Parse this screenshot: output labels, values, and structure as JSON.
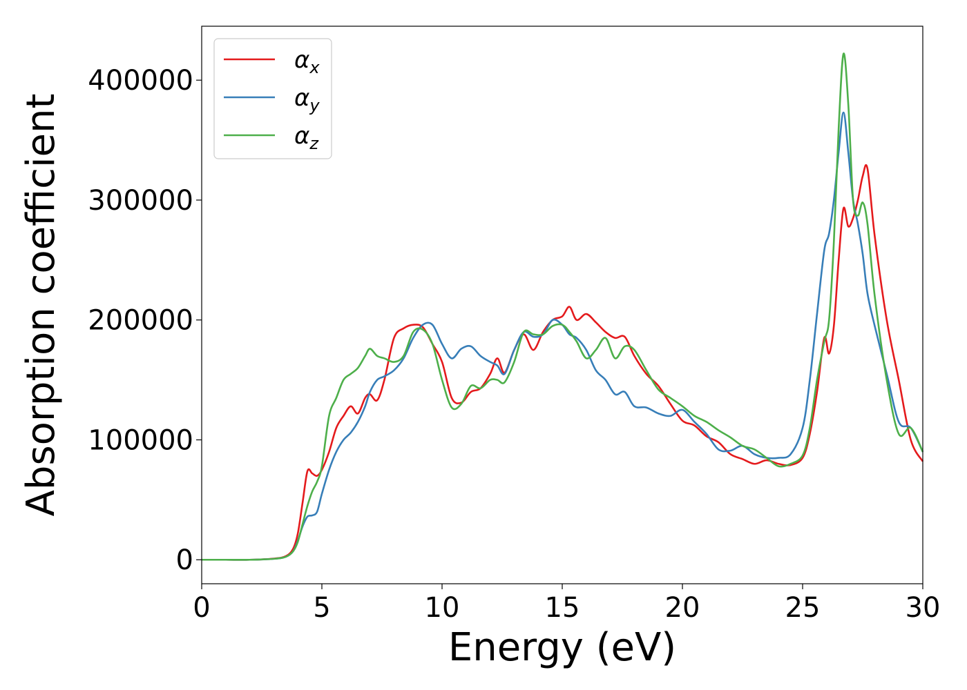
{
  "chart_data": {
    "type": "line",
    "title": "",
    "xlabel": "Energy (eV)",
    "ylabel": "Absorption coefficient",
    "xlim": [
      0,
      30
    ],
    "ylim": [
      -20000,
      445000
    ],
    "xticks": [
      0,
      5,
      10,
      15,
      20,
      25,
      30
    ],
    "xtick_labels": [
      "0",
      "5",
      "10",
      "15",
      "20",
      "25",
      "30"
    ],
    "yticks": [
      0,
      100000,
      200000,
      300000,
      400000
    ],
    "ytick_labels": [
      "0",
      "100000",
      "200000",
      "300000",
      "400000"
    ],
    "grid": false,
    "legend": "top-left",
    "series": [
      {
        "name": "α",
        "subscript": "x",
        "color": "#e41a1c",
        "x": [
          0,
          1,
          2,
          3,
          3.5,
          3.8,
          4.0,
          4.2,
          4.4,
          4.6,
          4.8,
          5.0,
          5.3,
          5.6,
          5.9,
          6.2,
          6.5,
          6.8,
          7.0,
          7.3,
          7.6,
          8.0,
          8.4,
          8.8,
          9.2,
          9.6,
          10.0,
          10.4,
          10.8,
          11.2,
          11.6,
          12.0,
          12.3,
          12.6,
          13.0,
          13.4,
          13.8,
          14.2,
          14.6,
          15.0,
          15.3,
          15.6,
          16.0,
          16.4,
          16.8,
          17.2,
          17.6,
          18.0,
          18.5,
          19.0,
          19.5,
          20.0,
          20.5,
          21.0,
          21.5,
          22.0,
          22.5,
          23.0,
          23.5,
          24.0,
          24.5,
          25.0,
          25.3,
          25.6,
          25.9,
          26.1,
          26.3,
          26.5,
          26.7,
          26.9,
          27.1,
          27.3,
          27.5,
          27.7,
          28.0,
          28.5,
          29.0,
          29.5,
          30.0
        ],
        "y": [
          0,
          0,
          0,
          1000,
          3000,
          9000,
          22000,
          48000,
          74000,
          72000,
          70000,
          75000,
          90000,
          110000,
          120000,
          128000,
          122000,
          135000,
          138000,
          133000,
          150000,
          185000,
          193000,
          196000,
          194000,
          180000,
          165000,
          135000,
          131000,
          140000,
          143000,
          155000,
          168000,
          156000,
          175000,
          188000,
          175000,
          190000,
          200000,
          203000,
          211000,
          200000,
          205000,
          198000,
          190000,
          185000,
          186000,
          170000,
          155000,
          145000,
          130000,
          116000,
          112000,
          103000,
          98000,
          88000,
          84000,
          80000,
          83000,
          80000,
          79000,
          85000,
          105000,
          140000,
          185000,
          172000,
          195000,
          250000,
          293000,
          278000,
          285000,
          300000,
          320000,
          326000,
          270000,
          200000,
          150000,
          100000,
          82000
        ]
      },
      {
        "name": "α",
        "subscript": "y",
        "color": "#377eb8",
        "x": [
          0,
          1,
          2,
          3,
          3.5,
          3.8,
          4.0,
          4.2,
          4.4,
          4.6,
          4.8,
          5.0,
          5.3,
          5.6,
          5.9,
          6.2,
          6.5,
          6.8,
          7.0,
          7.3,
          7.6,
          8.0,
          8.4,
          8.8,
          9.2,
          9.6,
          10.0,
          10.4,
          10.8,
          11.2,
          11.6,
          12.0,
          12.3,
          12.6,
          13.0,
          13.4,
          13.8,
          14.2,
          14.6,
          15.0,
          15.3,
          15.6,
          16.0,
          16.4,
          16.8,
          17.2,
          17.6,
          18.0,
          18.5,
          19.0,
          19.5,
          20.0,
          20.5,
          21.0,
          21.5,
          22.0,
          22.5,
          23.0,
          23.5,
          24.0,
          24.5,
          25.0,
          25.3,
          25.6,
          25.9,
          26.1,
          26.3,
          26.5,
          26.7,
          26.9,
          27.1,
          27.3,
          27.5,
          27.7,
          28.0,
          28.5,
          29.0,
          29.5,
          30.0
        ],
        "y": [
          0,
          0,
          0,
          800,
          2500,
          7000,
          16000,
          28000,
          36000,
          37000,
          40000,
          55000,
          75000,
          90000,
          100000,
          106000,
          115000,
          128000,
          140000,
          150000,
          153000,
          158000,
          168000,
          185000,
          196000,
          196000,
          180000,
          168000,
          176000,
          178000,
          170000,
          165000,
          162000,
          155000,
          175000,
          190000,
          186000,
          188000,
          200000,
          196000,
          188000,
          185000,
          175000,
          158000,
          150000,
          138000,
          140000,
          128000,
          127000,
          122000,
          120000,
          125000,
          115000,
          105000,
          92000,
          91000,
          95000,
          88000,
          85000,
          85000,
          88000,
          110000,
          150000,
          205000,
          258000,
          272000,
          300000,
          340000,
          373000,
          340000,
          300000,
          280000,
          255000,
          222000,
          195000,
          155000,
          115000,
          110000,
          90000
        ]
      },
      {
        "name": "α",
        "subscript": "z",
        "color": "#4daf4a",
        "x": [
          0,
          1,
          2,
          3,
          3.5,
          3.8,
          4.0,
          4.2,
          4.4,
          4.6,
          4.8,
          5.0,
          5.3,
          5.6,
          5.9,
          6.2,
          6.5,
          6.8,
          7.0,
          7.3,
          7.6,
          8.0,
          8.4,
          8.8,
          9.2,
          9.6,
          10.0,
          10.4,
          10.8,
          11.2,
          11.6,
          12.0,
          12.3,
          12.6,
          13.0,
          13.4,
          13.8,
          14.2,
          14.6,
          15.0,
          15.3,
          15.6,
          16.0,
          16.4,
          16.8,
          17.2,
          17.6,
          18.0,
          18.5,
          19.0,
          19.5,
          20.0,
          20.5,
          21.0,
          21.5,
          22.0,
          22.5,
          23.0,
          23.5,
          24.0,
          24.5,
          25.0,
          25.3,
          25.6,
          25.9,
          26.1,
          26.3,
          26.5,
          26.7,
          26.9,
          27.1,
          27.3,
          27.5,
          27.7,
          28.0,
          28.5,
          29.0,
          29.5,
          30.0
        ],
        "y": [
          0,
          0,
          0,
          800,
          2500,
          7000,
          15000,
          30000,
          45000,
          57000,
          65000,
          78000,
          120000,
          135000,
          150000,
          155000,
          160000,
          170000,
          176000,
          170000,
          168000,
          165000,
          170000,
          190000,
          192000,
          180000,
          150000,
          127000,
          130000,
          145000,
          143000,
          150000,
          150000,
          148000,
          165000,
          190000,
          188000,
          188000,
          195000,
          196000,
          190000,
          182000,
          168000,
          175000,
          185000,
          168000,
          178000,
          175000,
          158000,
          142000,
          135000,
          128000,
          120000,
          115000,
          108000,
          102000,
          95000,
          92000,
          85000,
          78000,
          80000,
          87000,
          110000,
          150000,
          182000,
          200000,
          265000,
          360000,
          422000,
          380000,
          300000,
          287000,
          298000,
          280000,
          220000,
          150000,
          105000,
          110000,
          90000
        ]
      }
    ]
  }
}
